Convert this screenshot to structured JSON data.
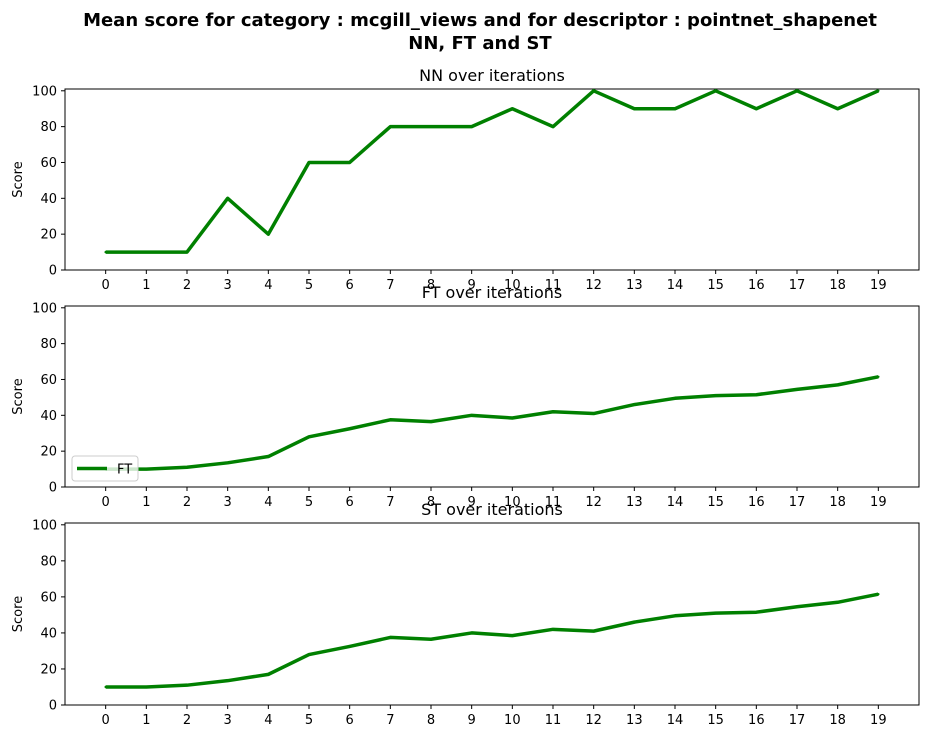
{
  "figure": {
    "title_line1": "Mean score for category : mcgill_views and for descriptor : pointnet_shapenet",
    "title_line2": "NN, FT and ST"
  },
  "chart_data": [
    {
      "type": "line",
      "title": "NN over iterations",
      "xlabel": "",
      "ylabel": "Score",
      "x": [
        0,
        1,
        2,
        3,
        4,
        5,
        6,
        7,
        8,
        9,
        10,
        11,
        12,
        13,
        14,
        15,
        16,
        17,
        18,
        19
      ],
      "xticks": [
        "0",
        "1",
        "2",
        "3",
        "4",
        "5",
        "6",
        "7",
        "8",
        "9",
        "10",
        "11",
        "12",
        "13",
        "14",
        "15",
        "16",
        "17",
        "18",
        "19"
      ],
      "yticks": [
        "0",
        "20",
        "40",
        "60",
        "80",
        "100"
      ],
      "ylim": [
        0,
        101
      ],
      "grid": false,
      "legend": null,
      "series": [
        {
          "name": "NN",
          "color": "#008000",
          "values": [
            10,
            10,
            10,
            40,
            20,
            60,
            60,
            80,
            80,
            80,
            90,
            80,
            100,
            90,
            90,
            100,
            90,
            100,
            90,
            100
          ]
        }
      ]
    },
    {
      "type": "line",
      "title": "FT over iterations",
      "xlabel": "",
      "ylabel": "Score",
      "x": [
        0,
        1,
        2,
        3,
        4,
        5,
        6,
        7,
        8,
        9,
        10,
        11,
        12,
        13,
        14,
        15,
        16,
        17,
        18,
        19
      ],
      "xticks": [
        "0",
        "1",
        "2",
        "3",
        "4",
        "5",
        "6",
        "7",
        "8",
        "9",
        "10",
        "11",
        "12",
        "13",
        "14",
        "15",
        "16",
        "17",
        "18",
        "19"
      ],
      "yticks": [
        "0",
        "20",
        "40",
        "60",
        "80",
        "100"
      ],
      "ylim": [
        0,
        101
      ],
      "grid": false,
      "legend": "lower-left",
      "series": [
        {
          "name": "FT",
          "color": "#008000",
          "values": [
            10,
            10,
            11,
            13.5,
            17,
            28,
            32.5,
            37.5,
            36.5,
            40,
            38.5,
            42,
            41,
            46,
            49.5,
            51,
            51.5,
            54.5,
            57,
            61.5
          ]
        }
      ]
    },
    {
      "type": "line",
      "title": "ST over iterations",
      "xlabel": "",
      "ylabel": "Score",
      "x": [
        0,
        1,
        2,
        3,
        4,
        5,
        6,
        7,
        8,
        9,
        10,
        11,
        12,
        13,
        14,
        15,
        16,
        17,
        18,
        19
      ],
      "xticks": [
        "0",
        "1",
        "2",
        "3",
        "4",
        "5",
        "6",
        "7",
        "8",
        "9",
        "10",
        "11",
        "12",
        "13",
        "14",
        "15",
        "16",
        "17",
        "18",
        "19"
      ],
      "yticks": [
        "0",
        "20",
        "40",
        "60",
        "80",
        "100"
      ],
      "ylim": [
        0,
        101
      ],
      "grid": false,
      "legend": null,
      "series": [
        {
          "name": "ST",
          "color": "#008000",
          "values": [
            10,
            10,
            11,
            13.5,
            17,
            28,
            32.5,
            37.5,
            36.5,
            40,
            38.5,
            42,
            41,
            46,
            49.5,
            51,
            51.5,
            54.5,
            57,
            61.5
          ]
        }
      ]
    }
  ]
}
